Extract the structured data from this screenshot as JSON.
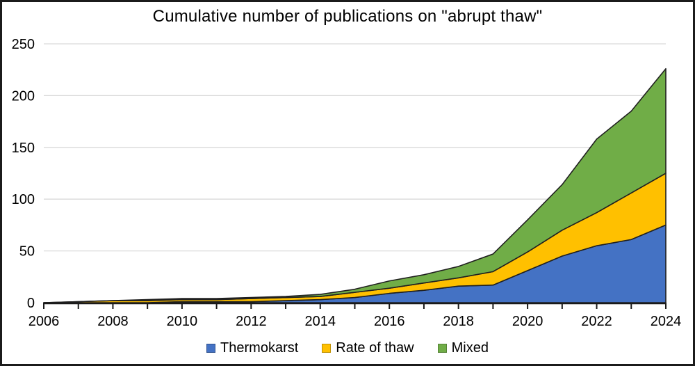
{
  "window": {
    "background": "#ffffff",
    "border_color": "#1b1b1b"
  },
  "chart_data": {
    "type": "area",
    "stacked": true,
    "title": "Cumulative number of publications on \"abrupt thaw\"",
    "x": [
      2006,
      2007,
      2008,
      2009,
      2010,
      2011,
      2012,
      2013,
      2014,
      2015,
      2016,
      2017,
      2018,
      2019,
      2020,
      2021,
      2022,
      2023,
      2024
    ],
    "xtick_labels": [
      "2006",
      "2008",
      "2010",
      "2012",
      "2014",
      "2016",
      "2018",
      "2020",
      "2022",
      "2024"
    ],
    "yticks": [
      0,
      50,
      100,
      150,
      200,
      250
    ],
    "ylim": [
      0,
      250
    ],
    "grid": true,
    "gridline_color": "#d9d9d9",
    "axis_color": "#1a1a1a",
    "outline_color": "#202020",
    "legend_position": "bottom",
    "series": [
      {
        "name": "Thermokarst",
        "color": "#4472C4",
        "border": "#2F528F",
        "values": [
          0,
          0,
          0,
          0,
          1,
          1,
          1,
          2,
          3,
          5,
          9,
          12,
          16,
          17,
          31,
          45,
          55,
          61,
          75
        ]
      },
      {
        "name": "Rate of thaw",
        "color": "#FFC000",
        "border": "#BF9000",
        "values": [
          0,
          1,
          2,
          2,
          2,
          2,
          3,
          3,
          3,
          5,
          5,
          7,
          8,
          13,
          18,
          25,
          32,
          45,
          50
        ]
      },
      {
        "name": "Mixed",
        "color": "#70AD47",
        "border": "#548235",
        "values": [
          0,
          0,
          0,
          1,
          1,
          1,
          1,
          1,
          2,
          3,
          7,
          8,
          11,
          17,
          31,
          44,
          71,
          79,
          101
        ]
      }
    ],
    "cumulative_totals": [
      0,
      1,
      2,
      3,
      4,
      4,
      5,
      6,
      8,
      13,
      21,
      27,
      35,
      47,
      80,
      114,
      158,
      185,
      226
    ]
  }
}
